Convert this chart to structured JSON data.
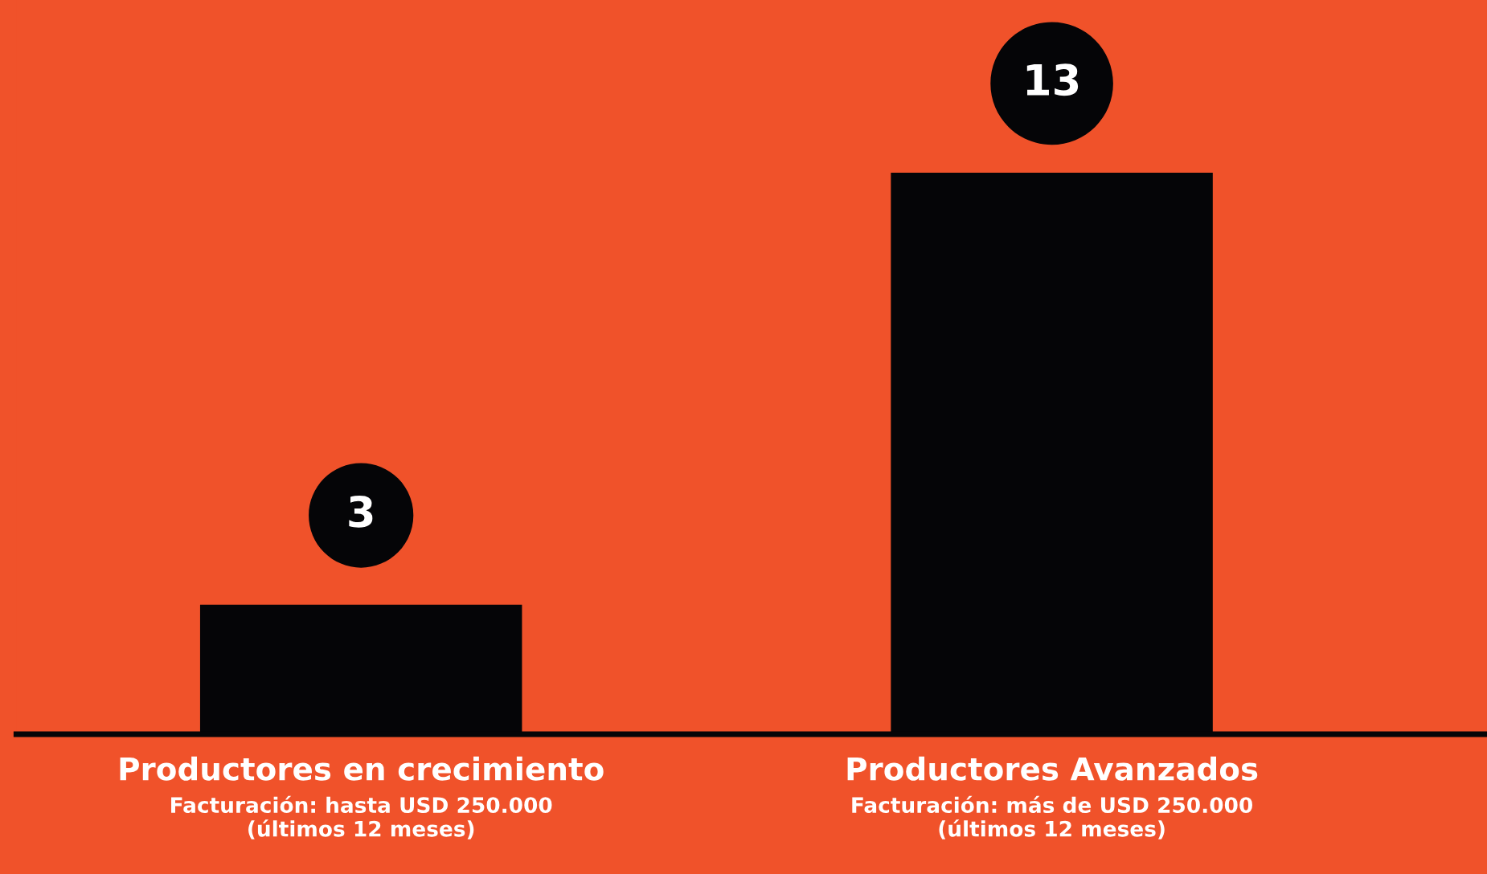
{
  "chart_data": {
    "type": "bar",
    "categories": [
      "Productores en crecimiento",
      "Productores Avanzados"
    ],
    "values": [
      3,
      13
    ],
    "color": "#050507",
    "ylim": [
      0,
      17
    ],
    "data_labels": true,
    "tick_labels": "x",
    "grid": false,
    "legend": false,
    "annotations": [
      "Facturación: hasta USD 250.000\n(últimos 12 meses)",
      "Facturación: más de USD 250.000\n(últimos 12 meses)"
    ]
  }
}
